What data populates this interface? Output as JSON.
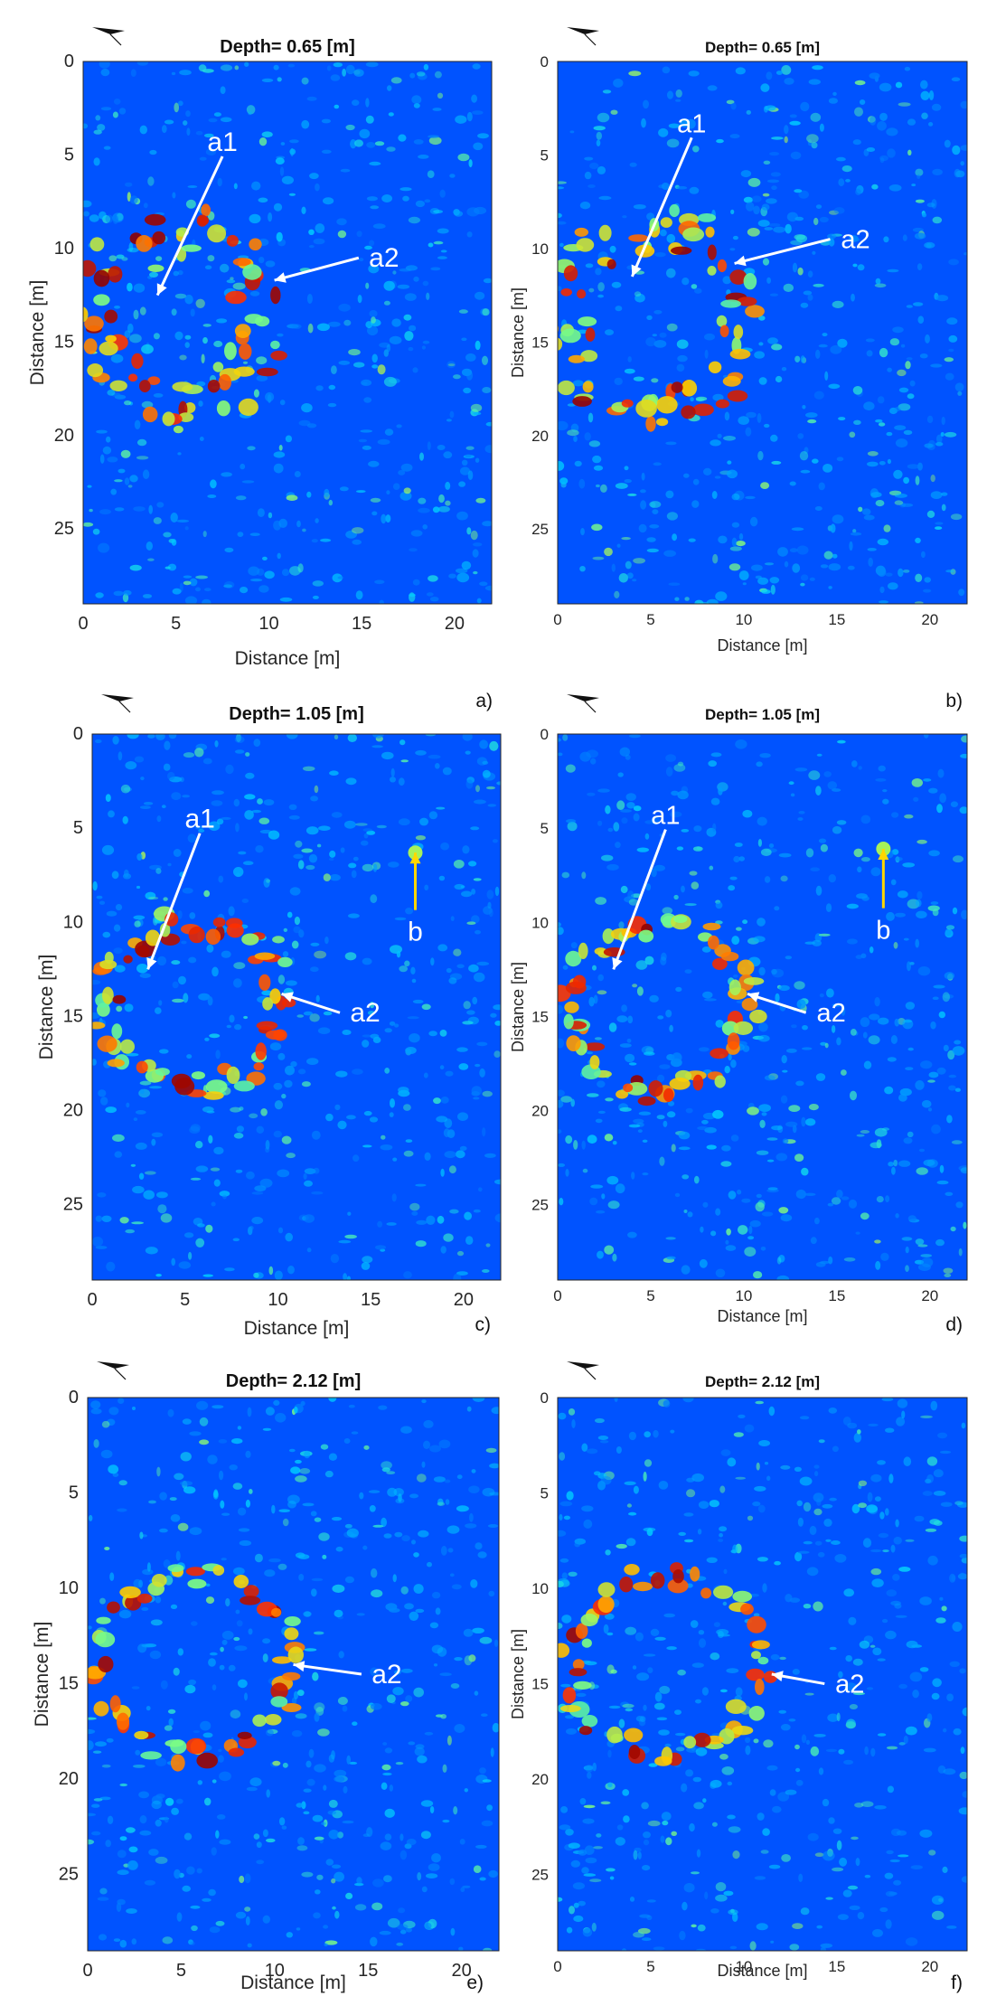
{
  "figure": {
    "panels": [
      {
        "id": "a",
        "label": "a)",
        "title": "Depth= 0.65 [m]",
        "xlabel": "Distance [m]",
        "ylabel": "Distance [m]",
        "xticks": [
          "0",
          "5",
          "10",
          "15",
          "20"
        ],
        "yticks": [
          "0",
          "5",
          "10",
          "15",
          "20",
          "25"
        ]
      },
      {
        "id": "b",
        "label": "b)",
        "title": "Depth= 0.65 [m]",
        "xlabel": "Distance [m]",
        "ylabel": "Distance [m]",
        "xticks": [
          "0",
          "5",
          "10",
          "15",
          "20"
        ],
        "yticks": [
          "0",
          "5",
          "10",
          "15",
          "20",
          "25"
        ]
      },
      {
        "id": "c",
        "label": "c)",
        "title": "Depth= 1.05 [m]",
        "xlabel": "Distance [m]",
        "ylabel": "Distance [m]",
        "xticks": [
          "0",
          "5",
          "10",
          "15",
          "20"
        ],
        "yticks": [
          "0",
          "5",
          "10",
          "15",
          "20",
          "25"
        ]
      },
      {
        "id": "d",
        "label": "d)",
        "title": "Depth= 1.05 [m]",
        "xlabel": "Distance [m]",
        "ylabel": "Distance [m]",
        "xticks": [
          "0",
          "5",
          "10",
          "15",
          "20"
        ],
        "yticks": [
          "0",
          "5",
          "10",
          "15",
          "20",
          "25"
        ]
      },
      {
        "id": "e",
        "label": "e)",
        "title": "Depth= 2.12 [m]",
        "xlabel": "Distance [m]",
        "ylabel": "Distance [m]",
        "xticks": [
          "0",
          "5",
          "10",
          "15",
          "20"
        ],
        "yticks": [
          "0",
          "5",
          "10",
          "15",
          "20",
          "25"
        ]
      },
      {
        "id": "f",
        "label": "f)",
        "title": "Depth= 2.12 [m]",
        "xlabel": "Distance [m]",
        "ylabel": "Distance [m]",
        "xticks": [
          "0",
          "5",
          "10",
          "15",
          "20"
        ],
        "yticks": [
          "0",
          "5",
          "10",
          "15",
          "20",
          "25"
        ]
      }
    ],
    "colormap": [
      "#00008f",
      "#0050ff",
      "#00d0ff",
      "#80ff80",
      "#ffd000",
      "#ff3000",
      "#8f0000"
    ],
    "annotation_colors": {
      "white": "#ffffff",
      "yellow": "#ffd700"
    },
    "north_arrow_icon": "north-arrow-icon"
  },
  "chart_data": [
    {
      "type": "heatmap",
      "panel": "a",
      "title": "Depth= 0.65 [m]",
      "xlabel": "Distance [m]",
      "ylabel": "Distance [m]",
      "xlim": [
        0,
        22
      ],
      "ylim": [
        29,
        0
      ],
      "features": [
        {
          "name": "a1",
          "point": [
            4,
            12.5
          ],
          "label": [
            7.5,
            4.3
          ]
        },
        {
          "name": "a2",
          "point": [
            10.3,
            11.7
          ],
          "label": [
            16.2,
            10.5
          ]
        }
      ]
    },
    {
      "type": "heatmap",
      "panel": "b",
      "title": "Depth= 0.65 [m]",
      "xlabel": "Distance [m]",
      "ylabel": "Distance [m]",
      "xlim": [
        0,
        22
      ],
      "ylim": [
        29,
        0
      ],
      "features": [
        {
          "name": "a1",
          "point": [
            4,
            11.5
          ],
          "label": [
            7.2,
            3.3
          ]
        },
        {
          "name": "a2",
          "point": [
            9.5,
            10.8
          ],
          "label": [
            16,
            9.5
          ]
        }
      ]
    },
    {
      "type": "heatmap",
      "panel": "c",
      "title": "Depth= 1.05 [m]",
      "xlabel": "Distance [m]",
      "ylabel": "Distance [m]",
      "xlim": [
        0,
        22
      ],
      "ylim": [
        29,
        0
      ],
      "features": [
        {
          "name": "a1",
          "point": [
            3,
            12.5
          ],
          "label": [
            5.8,
            4.5
          ]
        },
        {
          "name": "a2",
          "point": [
            10.2,
            13.8
          ],
          "label": [
            14.7,
            14.8
          ]
        },
        {
          "name": "b",
          "point": [
            17.4,
            6.3
          ],
          "label": [
            17.4,
            10.5
          ]
        }
      ]
    },
    {
      "type": "heatmap",
      "panel": "d",
      "title": "Depth= 1.05 [m]",
      "xlabel": "Distance [m]",
      "ylabel": "Distance [m]",
      "xlim": [
        0,
        22
      ],
      "ylim": [
        29,
        0
      ],
      "features": [
        {
          "name": "a1",
          "point": [
            3,
            12.5
          ],
          "label": [
            5.8,
            4.3
          ]
        },
        {
          "name": "a2",
          "point": [
            10.2,
            13.8
          ],
          "label": [
            14.7,
            14.8
          ]
        },
        {
          "name": "b",
          "point": [
            17.5,
            6.1
          ],
          "label": [
            17.5,
            10.4
          ]
        }
      ]
    },
    {
      "type": "heatmap",
      "panel": "e",
      "title": "Depth= 2.12 [m]",
      "xlabel": "Distance [m]",
      "ylabel": "Distance [m]",
      "xlim": [
        0,
        22
      ],
      "ylim": [
        29,
        0
      ],
      "features": [
        {
          "name": "a2",
          "point": [
            11,
            14
          ],
          "label": [
            16,
            14.5
          ]
        }
      ]
    },
    {
      "type": "heatmap",
      "panel": "f",
      "title": "Depth= 2.12 [m]",
      "xlabel": "Distance [m]",
      "ylabel": "Distance [m]",
      "xlim": [
        0,
        22
      ],
      "ylim": [
        29,
        0
      ],
      "features": [
        {
          "name": "a2",
          "point": [
            11.5,
            14.5
          ],
          "label": [
            15.7,
            15
          ]
        }
      ]
    }
  ]
}
